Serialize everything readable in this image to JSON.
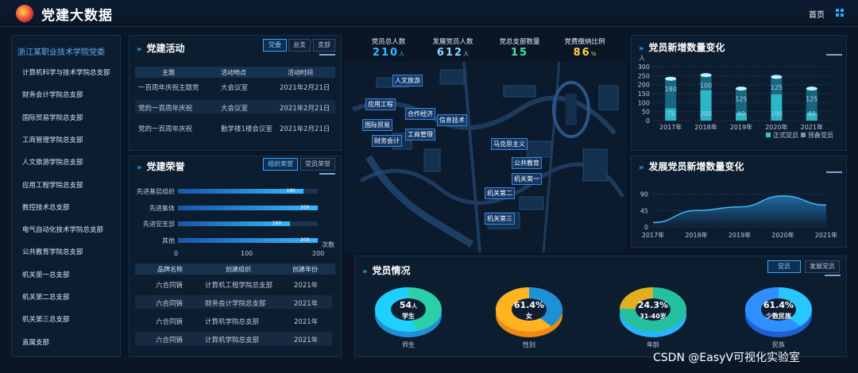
{
  "header": {
    "title": "党建大数据",
    "home": "首页",
    "logo_icon": "party-emblem-icon",
    "menu_icon": "grid-icon"
  },
  "sidebar": {
    "head": "浙江某职业技术学院党委",
    "items": [
      "计算机科学与技术学院总支部",
      "财务会计学院总支部",
      "国际贸易学院总支部",
      "工商管理学院总支部",
      "人文旅游学院总支部",
      "应用工程学院总支部",
      "数控技术总支部",
      "电气自动化技术学院总支部",
      "公共教育学院总支部",
      "机关第一总支部",
      "机关第二总支部",
      "机关第三总支部",
      "直属支部"
    ]
  },
  "activity": {
    "title": "党建活动",
    "tabs": [
      "党委",
      "总支",
      "支部"
    ],
    "columns": [
      "主题",
      "活动地点",
      "活动时间"
    ],
    "rows": [
      [
        "一百周年庆祝主题党",
        "大会议室",
        "2021年2月21日"
      ],
      [
        "党的一百周年庆祝",
        "大会议室",
        "2021年2月21日"
      ],
      [
        "党的一百周年庆祝",
        "勤学楼1楼会议室",
        "2021年2月21日"
      ]
    ]
  },
  "honor": {
    "title": "党建荣誉",
    "tabs": [
      "组织荣誉",
      "党员荣誉"
    ],
    "bars": [
      {
        "label": "先进基层组织",
        "value": 180
      },
      {
        "label": "先进集体",
        "value": 200
      },
      {
        "label": "先进党支部",
        "value": 160
      },
      {
        "label": "其他",
        "value": 200
      }
    ],
    "axis_max": 200,
    "axis_ticks": [
      "0",
      "100",
      "200"
    ],
    "axis_unit": "次数",
    "columns": [
      "品牌名称",
      "创建组织",
      "创建年份"
    ],
    "rows": [
      [
        "六合同铸",
        "计算机工程学院总支部",
        "2021年"
      ],
      [
        "六合同铸",
        "财务会计学院总支部",
        "2021年"
      ],
      [
        "六合同铸",
        "计算机学院总支部",
        "2021年"
      ],
      [
        "六合同铸",
        "计算机学院总支部",
        "2021年"
      ]
    ]
  },
  "kpis": [
    {
      "label": "党员总人数",
      "value": "210",
      "unit": "人",
      "color": "#35b8ff"
    },
    {
      "label": "发展党员人数",
      "value": "612",
      "unit": "人",
      "color": "#8fd8ff"
    },
    {
      "label": "党总支部数量",
      "value": "15",
      "unit": "",
      "color": "#3ee8a8"
    },
    {
      "label": "党费缴纳比例",
      "value": "86",
      "unit": "%",
      "color": "#ffd24a"
    }
  ],
  "map_labels": [
    "人文旅游",
    "应用工程",
    "合作经济",
    "信息技术",
    "国际贸易",
    "工商管理",
    "财务会计",
    "马克思主义",
    "公共教育",
    "机关第一",
    "机关第二",
    "机关第三"
  ],
  "member_growth": {
    "title": "党员新增数量变化",
    "chart_data": {
      "type": "bar",
      "ylabel": "人",
      "categories": [
        "2017年",
        "2018年",
        "2019年",
        "2020年",
        "2021年"
      ],
      "series": [
        {
          "name": "正式党员",
          "values": [
            75,
            200,
            40,
            190,
            40
          ]
        },
        {
          "name": "预备党员",
          "values": [
            180,
            100,
            125,
            125,
            125
          ]
        }
      ],
      "yticks": [
        0,
        50,
        100,
        150,
        200,
        250,
        300
      ],
      "ylim": [
        0,
        300
      ],
      "legend": "bottom-right"
    }
  },
  "develop_growth": {
    "title": "发展党员新增数量变化",
    "chart_data": {
      "type": "area",
      "categories": [
        "2017年",
        "2018年",
        "2019年",
        "2020年",
        "2021年"
      ],
      "values": [
        12,
        45,
        55,
        85,
        60
      ],
      "yticks": [
        0,
        45,
        90
      ],
      "ylim": [
        0,
        100
      ]
    }
  },
  "members": {
    "title": "党员情况",
    "tabs": [
      "党员",
      "发展党员"
    ],
    "donuts": [
      {
        "value": "54",
        "unit": "人",
        "sub": "学生",
        "caption": "师生",
        "fraction": 0.54,
        "colors": [
          "#1fd0ff",
          "#1f8fd8",
          "#2bd0a8"
        ]
      },
      {
        "value": "61.4%",
        "unit": "",
        "sub": "女",
        "caption": "性别",
        "fraction": 0.614,
        "colors": [
          "#ffb320",
          "#f08a10",
          "#1f8fd8"
        ]
      },
      {
        "value": "24.3%",
        "unit": "",
        "sub": "31-40岁",
        "caption": "年龄",
        "fraction": 0.243,
        "colors": [
          "#e0b020",
          "#27b4ff",
          "#24c0a0"
        ]
      },
      {
        "value": "61.4%",
        "unit": "",
        "sub": "少数民族",
        "caption": "民族",
        "fraction": 0.614,
        "colors": [
          "#2f8fff",
          "#1f5fd8",
          "#27c8ff"
        ]
      }
    ]
  },
  "watermark": "CSDN @EasyV可视化实验室"
}
